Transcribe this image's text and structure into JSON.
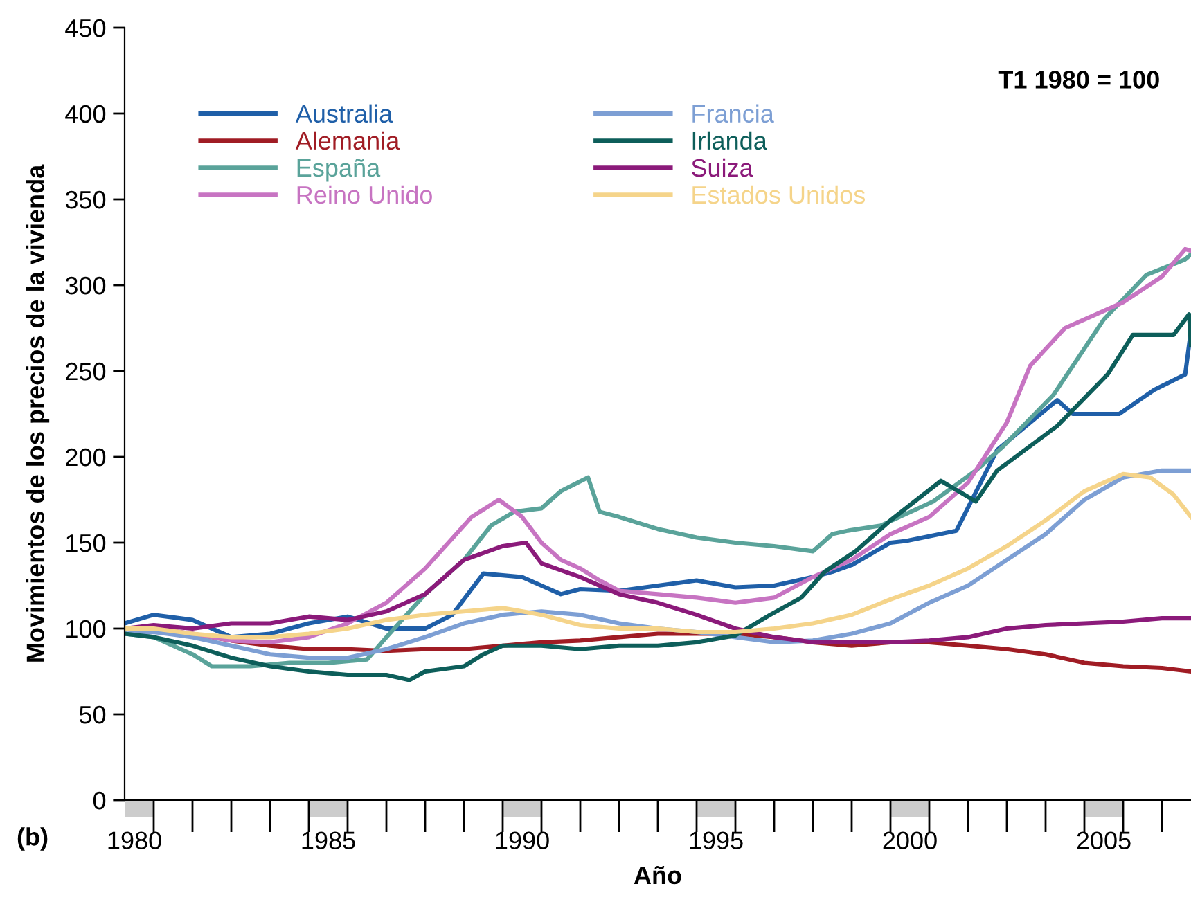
{
  "chart_data": {
    "type": "line",
    "xlabel": "Año",
    "ylabel": "Movimientos de los precios de la vivienda",
    "annotations": [
      "T1 1980 = 100",
      "(b)"
    ],
    "xlim": [
      1980.25,
      2007.75
    ],
    "ylim": [
      0,
      450
    ],
    "yticks": [
      0,
      50,
      100,
      150,
      200,
      250,
      300,
      350,
      400,
      450
    ],
    "xticks": [
      {
        "value": 1980.5,
        "label": "1980"
      },
      {
        "value": 1985.5,
        "label": "1985"
      },
      {
        "value": 1990.5,
        "label": "1990"
      },
      {
        "value": 1995.5,
        "label": "1995"
      },
      {
        "value": 2000.5,
        "label": "2000"
      },
      {
        "value": 2005.5,
        "label": "2005"
      }
    ],
    "grid": false,
    "legend": "top left",
    "marker": "none",
    "line_style": "solid",
    "series": [
      {
        "name": "Australia",
        "color": "#1f5fa8",
        "x": [
          1980.25,
          1981,
          1982,
          1983,
          1984,
          1985,
          1986,
          1987,
          1988,
          1988.7,
          1989.5,
          1990.5,
          1991,
          1991.5,
          1992,
          1993,
          1994,
          1995,
          1996,
          1997,
          1998,
          1998.5,
          1999,
          2000,
          2000.4,
          2001.7,
          2002.75,
          2004.3,
          2004.7,
          2005.9,
          2006.8,
          2007.6,
          2007.75
        ],
        "values": [
          103,
          108,
          105,
          95,
          97,
          103,
          107,
          100,
          100,
          108,
          132,
          130,
          125,
          120,
          123,
          122,
          125,
          128,
          124,
          125,
          130,
          133,
          137,
          150,
          151,
          157,
          204,
          233,
          225,
          225,
          239,
          248,
          274
        ]
      },
      {
        "name": "Alemania",
        "color": "#a01c24",
        "x": [
          1980.25,
          1981,
          1982,
          1983,
          1984,
          1985,
          1986,
          1987,
          1988,
          1989,
          1990,
          1991,
          1992,
          1993,
          1994,
          1995,
          1996,
          1997,
          1998,
          1999,
          2000,
          2001,
          2002,
          2003,
          2004,
          2005,
          2006,
          2007,
          2007.75
        ],
        "values": [
          100,
          100,
          97,
          93,
          90,
          88,
          88,
          87,
          88,
          88,
          90,
          92,
          93,
          95,
          97,
          97,
          97,
          95,
          92,
          90,
          92,
          92,
          90,
          88,
          85,
          80,
          78,
          77,
          75
        ]
      },
      {
        "name": "España",
        "color": "#5aa39a",
        "x": [
          1980.25,
          1981,
          1982,
          1982.5,
          1983.5,
          1984.5,
          1985.5,
          1986.5,
          1987,
          1988,
          1989,
          1989.7,
          1990.3,
          1991,
          1991.5,
          1992.2,
          1992.5,
          1993,
          1994,
          1995,
          1996,
          1997,
          1998,
          1998.5,
          1998.9,
          1999.75,
          2001.1,
          2002.2,
          2002.9,
          2004.2,
          2005.5,
          2006.6,
          2007.6,
          2007.75
        ],
        "values": [
          97,
          95,
          85,
          78,
          78,
          80,
          80,
          82,
          95,
          120,
          140,
          160,
          168,
          170,
          180,
          188,
          168,
          165,
          158,
          153,
          150,
          148,
          145,
          155,
          157,
          160,
          174,
          192,
          206,
          236,
          280,
          306,
          315,
          318
        ]
      },
      {
        "name": "Reino Unido",
        "color": "#c774c2",
        "x": [
          1980.25,
          1981,
          1982,
          1983,
          1984,
          1985,
          1986,
          1987,
          1988,
          1989.2,
          1989.9,
          1990.5,
          1991,
          1991.5,
          1992,
          1992.5,
          1993,
          1994,
          1995,
          1996,
          1997,
          1998,
          1999,
          2000,
          2001,
          2002,
          2003,
          2003.6,
          2004.5,
          2005,
          2006,
          2007,
          2007.6,
          2007.75
        ],
        "values": [
          100,
          100,
          97,
          93,
          92,
          95,
          103,
          115,
          135,
          165,
          175,
          165,
          150,
          140,
          135,
          128,
          122,
          120,
          118,
          115,
          118,
          130,
          140,
          155,
          165,
          185,
          220,
          253,
          275,
          280,
          290,
          305,
          321,
          320
        ]
      },
      {
        "name": "Francia",
        "color": "#7d9fd4",
        "x": [
          1980.25,
          1981,
          1982,
          1983,
          1984,
          1985,
          1986,
          1987,
          1988,
          1989,
          1990,
          1991,
          1992,
          1993,
          1994,
          1995,
          1996,
          1997,
          1998,
          1999,
          2000,
          2001,
          2002,
          2003,
          2004,
          2005,
          2006,
          2007,
          2007.75
        ],
        "values": [
          97,
          98,
          95,
          90,
          85,
          83,
          83,
          88,
          95,
          103,
          108,
          110,
          108,
          103,
          100,
          98,
          95,
          92,
          93,
          97,
          103,
          115,
          125,
          140,
          155,
          175,
          188,
          192,
          192
        ]
      },
      {
        "name": "Irlanda",
        "color": "#0d5e5a",
        "x": [
          1980.25,
          1981,
          1982,
          1983,
          1984,
          1985,
          1986,
          1987,
          1987.6,
          1988,
          1989,
          1989.5,
          1990,
          1991,
          1992,
          1993,
          1994,
          1995,
          1996,
          1996.9,
          1997.7,
          1998.3,
          1999.1,
          2000,
          2001.3,
          2002.2,
          2002.75,
          2004.3,
          2005.6,
          2006.25,
          2007.3,
          2007.7,
          2007.75
        ],
        "values": [
          97,
          95,
          90,
          83,
          78,
          75,
          73,
          73,
          70,
          75,
          78,
          85,
          90,
          90,
          88,
          90,
          90,
          92,
          96,
          108,
          118,
          133,
          145,
          163,
          186,
          174,
          192,
          218,
          248,
          271,
          271,
          283,
          265
        ]
      },
      {
        "name": "Suiza",
        "color": "#8b1a7a",
        "x": [
          1980.25,
          1981,
          1982,
          1983,
          1984,
          1985,
          1986,
          1987,
          1988,
          1989,
          1990,
          1990.6,
          1991,
          1992,
          1993,
          1994,
          1995,
          1996,
          1997,
          1998,
          1999,
          2000,
          2001,
          2002,
          2003,
          2004,
          2005,
          2006,
          2007,
          2007.75
        ],
        "values": [
          100,
          102,
          100,
          103,
          103,
          107,
          105,
          110,
          120,
          140,
          148,
          150,
          138,
          130,
          120,
          115,
          108,
          100,
          95,
          92,
          92,
          92,
          93,
          95,
          100,
          102,
          103,
          104,
          106,
          106
        ]
      },
      {
        "name": "Estados Unidos",
        "color": "#f5d48a",
        "x": [
          1980.25,
          1981,
          1982,
          1983,
          1984,
          1985,
          1986,
          1987,
          1988,
          1989,
          1990,
          1991,
          1992,
          1993,
          1994,
          1995,
          1996,
          1997,
          1998,
          1999,
          2000,
          2001,
          2002,
          2003,
          2004,
          2005,
          2006,
          2006.7,
          2007.3,
          2007.75
        ],
        "values": [
          100,
          100,
          97,
          95,
          95,
          97,
          100,
          105,
          108,
          110,
          112,
          108,
          102,
          100,
          100,
          98,
          98,
          100,
          103,
          108,
          117,
          125,
          135,
          148,
          163,
          180,
          190,
          188,
          178,
          165
        ]
      }
    ]
  }
}
